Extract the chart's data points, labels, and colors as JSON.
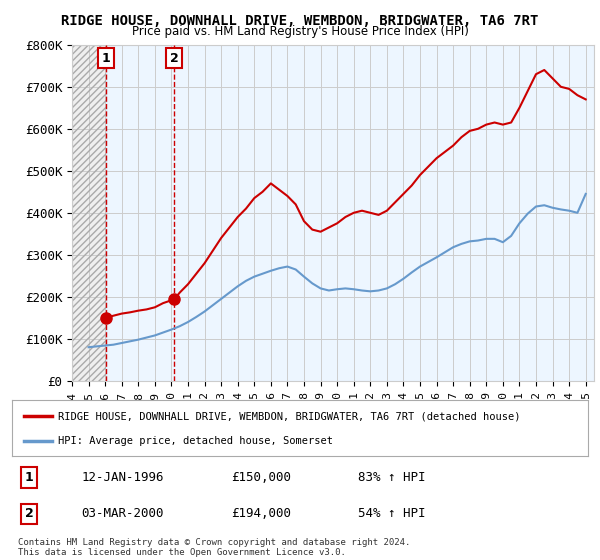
{
  "title": "RIDGE HOUSE, DOWNHALL DRIVE, WEMBDON, BRIDGWATER, TA6 7RT",
  "subtitle": "Price paid vs. HM Land Registry's House Price Index (HPI)",
  "legend_line1": "RIDGE HOUSE, DOWNHALL DRIVE, WEMBDON, BRIDGWATER, TA6 7RT (detached house)",
  "legend_line2": "HPI: Average price, detached house, Somerset",
  "footnote": "Contains HM Land Registry data © Crown copyright and database right 2024.\nThis data is licensed under the Open Government Licence v3.0.",
  "sale1_label": "1",
  "sale1_date": "12-JAN-1996",
  "sale1_price": "£150,000",
  "sale1_hpi": "83% ↑ HPI",
  "sale2_label": "2",
  "sale2_date": "03-MAR-2000",
  "sale2_price": "£194,000",
  "sale2_hpi": "54% ↑ HPI",
  "sale1_x": 1996.04,
  "sale1_y": 150000,
  "sale2_x": 2000.17,
  "sale2_y": 194000,
  "hatch_start": 1994.0,
  "hatch_end": 1996.04,
  "ylim": [
    0,
    800000
  ],
  "xlim": [
    1994.0,
    2025.5
  ],
  "red_color": "#cc0000",
  "blue_color": "#6699cc",
  "background_color": "#ffffff",
  "hatch_bg_color": "#e8e8e8",
  "shade_color": "#ddeeff",
  "yticks": [
    0,
    100000,
    200000,
    300000,
    400000,
    500000,
    600000,
    700000,
    800000
  ],
  "ytick_labels": [
    "£0",
    "£100K",
    "£200K",
    "£300K",
    "£400K",
    "£500K",
    "£600K",
    "£700K",
    "£800K"
  ],
  "xticks": [
    1994,
    1995,
    1996,
    1997,
    1998,
    1999,
    2000,
    2001,
    2002,
    2003,
    2004,
    2005,
    2006,
    2007,
    2008,
    2009,
    2010,
    2011,
    2012,
    2013,
    2014,
    2015,
    2016,
    2017,
    2018,
    2019,
    2020,
    2021,
    2022,
    2023,
    2024,
    2025
  ],
  "red_line_x": [
    1996.04,
    1996.5,
    1997.0,
    1997.5,
    1998.0,
    1998.5,
    1999.0,
    1999.5,
    2000.17,
    2000.5,
    2001.0,
    2001.5,
    2002.0,
    2002.5,
    2003.0,
    2003.5,
    2004.0,
    2004.5,
    2005.0,
    2005.5,
    2006.0,
    2006.5,
    2007.0,
    2007.5,
    2008.0,
    2008.5,
    2009.0,
    2009.5,
    2010.0,
    2010.5,
    2011.0,
    2011.5,
    2012.0,
    2012.5,
    2013.0,
    2013.5,
    2014.0,
    2014.5,
    2015.0,
    2015.5,
    2016.0,
    2016.5,
    2017.0,
    2017.5,
    2018.0,
    2018.5,
    2019.0,
    2019.5,
    2020.0,
    2020.5,
    2021.0,
    2021.5,
    2022.0,
    2022.5,
    2023.0,
    2023.5,
    2024.0,
    2024.5,
    2025.0
  ],
  "red_line_y": [
    150000,
    155000,
    160000,
    163000,
    167000,
    170000,
    175000,
    185000,
    194000,
    210000,
    230000,
    255000,
    280000,
    310000,
    340000,
    365000,
    390000,
    410000,
    435000,
    450000,
    470000,
    455000,
    440000,
    420000,
    380000,
    360000,
    355000,
    365000,
    375000,
    390000,
    400000,
    405000,
    400000,
    395000,
    405000,
    425000,
    445000,
    465000,
    490000,
    510000,
    530000,
    545000,
    560000,
    580000,
    595000,
    600000,
    610000,
    615000,
    610000,
    615000,
    650000,
    690000,
    730000,
    740000,
    720000,
    700000,
    695000,
    680000,
    670000
  ],
  "blue_line_x": [
    1995.0,
    1995.5,
    1996.0,
    1996.5,
    1997.0,
    1997.5,
    1998.0,
    1998.5,
    1999.0,
    1999.5,
    2000.0,
    2000.5,
    2001.0,
    2001.5,
    2002.0,
    2002.5,
    2003.0,
    2003.5,
    2004.0,
    2004.5,
    2005.0,
    2005.5,
    2006.0,
    2006.5,
    2007.0,
    2007.5,
    2008.0,
    2008.5,
    2009.0,
    2009.5,
    2010.0,
    2010.5,
    2011.0,
    2011.5,
    2012.0,
    2012.5,
    2013.0,
    2013.5,
    2014.0,
    2014.5,
    2015.0,
    2015.5,
    2016.0,
    2016.5,
    2017.0,
    2017.5,
    2018.0,
    2018.5,
    2019.0,
    2019.5,
    2020.0,
    2020.5,
    2021.0,
    2021.5,
    2022.0,
    2022.5,
    2023.0,
    2023.5,
    2024.0,
    2024.5,
    2025.0
  ],
  "blue_line_y": [
    80000,
    82000,
    84000,
    86000,
    90000,
    94000,
    98000,
    103000,
    108000,
    115000,
    122000,
    130000,
    140000,
    152000,
    165000,
    180000,
    195000,
    210000,
    225000,
    238000,
    248000,
    255000,
    262000,
    268000,
    272000,
    265000,
    248000,
    232000,
    220000,
    215000,
    218000,
    220000,
    218000,
    215000,
    213000,
    215000,
    220000,
    230000,
    243000,
    258000,
    272000,
    283000,
    294000,
    306000,
    318000,
    326000,
    332000,
    334000,
    338000,
    338000,
    330000,
    345000,
    375000,
    398000,
    415000,
    418000,
    412000,
    408000,
    405000,
    400000,
    445000
  ]
}
